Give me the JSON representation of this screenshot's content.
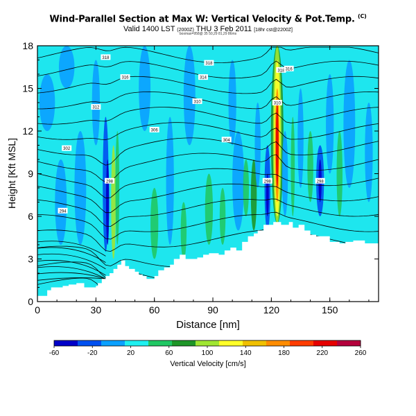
{
  "title": "Wind-Parallel Section at Max W: Vertical Velocity & Pot.Temp.",
  "title_mark": "(C)",
  "subtitle": {
    "main": "Valid 1400 LST",
    "part2": "(2000Z)",
    "part3": "THU 3 Feb 2011",
    "part4": "[18hr cst@2200Z]"
  },
  "subtitle_small": "boxmax=958@ 35 50,29 81,29 86ms",
  "chart_data": {
    "type": "heatmap",
    "xlabel": "Distance [nm]",
    "ylabel": "Height [Kft MSL]",
    "xlim": [
      0,
      175
    ],
    "ylim": [
      0,
      18
    ],
    "xticks": [
      "0",
      "30",
      "60",
      "90",
      "120",
      "150"
    ],
    "yticks": [
      "0",
      "3",
      "6",
      "9",
      "12",
      "15",
      "18"
    ],
    "colorbar": {
      "label": "Vertical Velocity [cm/s]",
      "ticks": [
        "-60",
        "-20",
        "20",
        "60",
        "100",
        "140",
        "180",
        "220",
        "260"
      ],
      "colors": [
        "#0000c8",
        "#0050f0",
        "#0aa0ff",
        "#1ef0f0",
        "#20c864",
        "#1e9628",
        "#a0e632",
        "#ffff28",
        "#f0c000",
        "#ff8c00",
        "#ff3c00",
        "#e60000",
        "#b4003c"
      ]
    },
    "terrain_kft": [
      [
        0,
        0.4
      ],
      [
        3,
        0.4
      ],
      [
        5,
        0.8
      ],
      [
        7,
        1.0
      ],
      [
        10,
        1.0
      ],
      [
        13,
        1.1
      ],
      [
        16,
        1.2
      ],
      [
        20,
        1.3
      ],
      [
        24,
        1.0
      ],
      [
        28,
        1.0
      ],
      [
        30,
        1.1
      ],
      [
        31,
        1.3
      ],
      [
        33,
        1.6
      ],
      [
        35,
        1.8
      ],
      [
        37,
        2.0
      ],
      [
        39,
        2.3
      ],
      [
        41,
        2.6
      ],
      [
        43,
        2.9
      ],
      [
        45,
        2.5
      ],
      [
        47,
        2.3
      ],
      [
        50,
        2.1
      ],
      [
        52,
        1.9
      ],
      [
        54,
        1.8
      ],
      [
        56,
        1.6
      ],
      [
        58,
        1.6
      ],
      [
        60,
        1.8
      ],
      [
        62,
        2.2
      ],
      [
        65,
        2.4
      ],
      [
        68,
        2.6
      ],
      [
        70,
        3.0
      ],
      [
        73,
        3.3
      ],
      [
        76,
        3.0
      ],
      [
        79,
        3.0
      ],
      [
        82,
        3.1
      ],
      [
        85,
        3.3
      ],
      [
        88,
        3.4
      ],
      [
        90,
        3.4
      ],
      [
        93,
        3.3
      ],
      [
        96,
        3.6
      ],
      [
        99,
        3.8
      ],
      [
        102,
        3.6
      ],
      [
        105,
        4.2
      ],
      [
        108,
        4.6
      ],
      [
        111,
        4.8
      ],
      [
        113,
        5.0
      ],
      [
        116,
        5.4
      ],
      [
        119,
        5.4
      ],
      [
        121,
        5.6
      ],
      [
        123,
        5.6
      ],
      [
        125,
        5.4
      ],
      [
        127,
        5.4
      ],
      [
        129,
        5.6
      ],
      [
        131,
        5.2
      ],
      [
        134,
        5.4
      ],
      [
        137,
        5.0
      ],
      [
        140,
        4.7
      ],
      [
        143,
        4.6
      ],
      [
        146,
        4.6
      ],
      [
        150,
        4.2
      ],
      [
        155,
        4.1
      ],
      [
        158,
        4.2
      ],
      [
        162,
        4.3
      ],
      [
        168,
        4.1
      ],
      [
        175,
        4.1
      ]
    ],
    "theta_labels": [
      {
        "x": 35,
        "y": 17.2,
        "text": "318"
      },
      {
        "x": 45,
        "y": 15.8,
        "text": "316"
      },
      {
        "x": 88,
        "y": 16.8,
        "text": "318"
      },
      {
        "x": 85,
        "y": 15.8,
        "text": "314"
      },
      {
        "x": 125,
        "y": 16.3,
        "text": "318"
      },
      {
        "x": 129,
        "y": 16.4,
        "text": "316"
      },
      {
        "x": 30,
        "y": 13.7,
        "text": "312"
      },
      {
        "x": 82,
        "y": 14.1,
        "text": "310"
      },
      {
        "x": 123,
        "y": 14.0,
        "text": "310"
      },
      {
        "x": 60,
        "y": 12.1,
        "text": "306"
      },
      {
        "x": 97,
        "y": 11.4,
        "text": "304"
      },
      {
        "x": 15,
        "y": 10.8,
        "text": "302"
      },
      {
        "x": 37,
        "y": 8.5,
        "text": "298"
      },
      {
        "x": 118,
        "y": 8.5,
        "text": "298"
      },
      {
        "x": 145,
        "y": 8.5,
        "text": "298"
      },
      {
        "x": 13,
        "y": 6.4,
        "text": "294"
      }
    ]
  }
}
